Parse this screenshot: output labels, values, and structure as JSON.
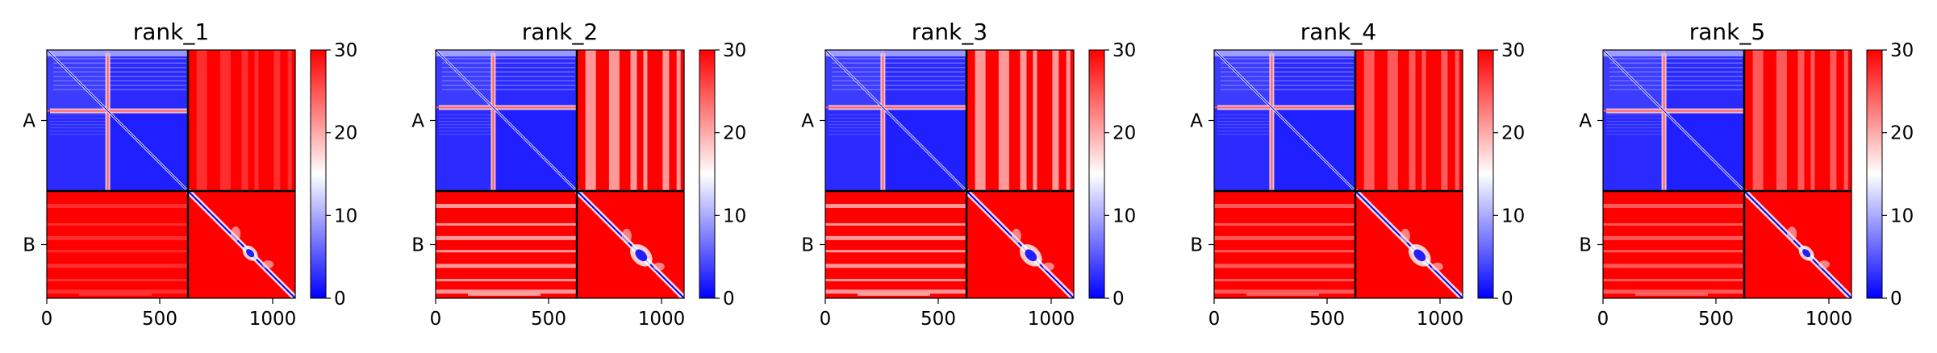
{
  "chart_data": {
    "type": "heatmap",
    "colormap": {
      "low": "#0000ff",
      "mid": "#ffffff",
      "high": "#ff0000"
    },
    "colorbar": {
      "min": 0,
      "max": 30,
      "ticks": [
        0,
        10,
        20,
        30
      ]
    },
    "chain_boundary": 625,
    "x_range": [
      0,
      1100
    ],
    "x_ticks": [
      0,
      500,
      1000
    ],
    "y_tick_labels": [
      "A",
      "B"
    ],
    "panels": [
      {
        "title": "rank_1",
        "b_x_stripes": "weak",
        "a_y_stripes": "weak",
        "domain_split": 270,
        "b_diag": "normal"
      },
      {
        "title": "rank_2",
        "b_x_stripes": "strong",
        "a_y_stripes": "strong",
        "domain_split": 255,
        "b_diag": "bulge"
      },
      {
        "title": "rank_3",
        "b_x_stripes": "strong",
        "a_y_stripes": "strong",
        "domain_split": 255,
        "b_diag": "bulge"
      },
      {
        "title": "rank_4",
        "b_x_stripes": "medium",
        "a_y_stripes": "medium",
        "domain_split": 255,
        "b_diag": "bulge"
      },
      {
        "title": "rank_5",
        "b_x_stripes": "medium",
        "a_y_stripes": "medium",
        "domain_split": 270,
        "b_diag": "normal"
      }
    ]
  }
}
